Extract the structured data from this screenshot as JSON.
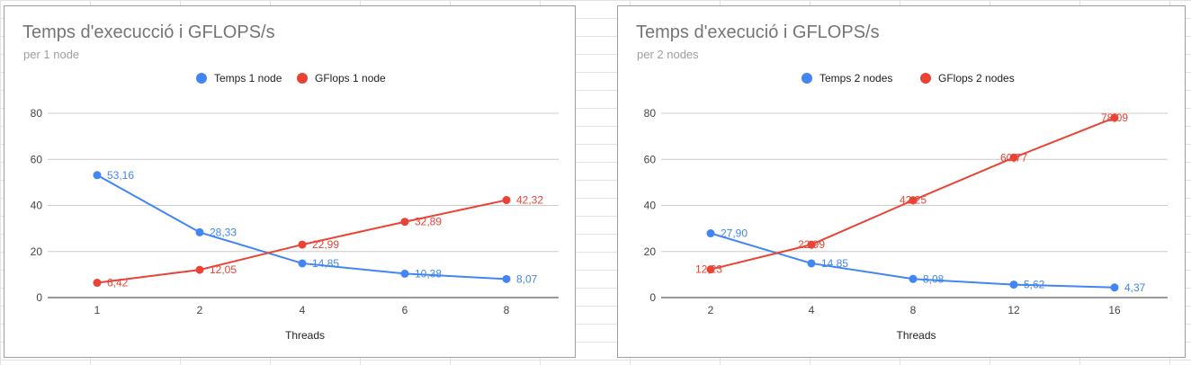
{
  "chart_data": [
    {
      "type": "line",
      "title": "Temps d'execucció i GFLOPS/s",
      "subtitle": "per 1 node",
      "xlabel": "Threads",
      "categories": [
        "1",
        "2",
        "4",
        "6",
        "8"
      ],
      "ylim": [
        0,
        80
      ],
      "yticks": [
        "0",
        "20",
        "40",
        "60",
        "80"
      ],
      "grid": true,
      "legend_position": "top",
      "series": [
        {
          "name": "Temps 1 node",
          "color": "#4285f4",
          "values": [
            53.16,
            28.33,
            14.85,
            10.38,
            8.07
          ],
          "labels": [
            "53,16",
            "28,33",
            "14,85",
            "10,38",
            "8,07"
          ]
        },
        {
          "name": "GFlops 1 node",
          "color": "#ea4335",
          "values": [
            6.42,
            12.05,
            22.99,
            32.89,
            42.32
          ],
          "labels": [
            "6,42",
            "12,05",
            "22,99",
            "32,89",
            "42,32"
          ]
        }
      ]
    },
    {
      "type": "line",
      "title": "Temps d'execució i GFLOPS/s",
      "subtitle": "per 2 nodes",
      "xlabel": "Threads",
      "categories": [
        "2",
        "4",
        "8",
        "12",
        "16"
      ],
      "ylim": [
        0,
        80
      ],
      "yticks": [
        "0",
        "20",
        "40",
        "60",
        "80"
      ],
      "grid": true,
      "legend_position": "top",
      "series": [
        {
          "name": "Temps 2 nodes",
          "color": "#4285f4",
          "values": [
            27.9,
            14.85,
            8.08,
            5.62,
            4.37
          ],
          "labels": [
            "27,90",
            "14,85",
            "8,08",
            "5,62",
            "4,37"
          ]
        },
        {
          "name": "GFlops 2 nodes",
          "color": "#ea4335",
          "values": [
            12.23,
            22.99,
            42.25,
            60.77,
            78.09
          ],
          "labels": [
            "12,23",
            "22,99",
            "42,25",
            "60,77",
            "78,09"
          ]
        }
      ]
    }
  ]
}
